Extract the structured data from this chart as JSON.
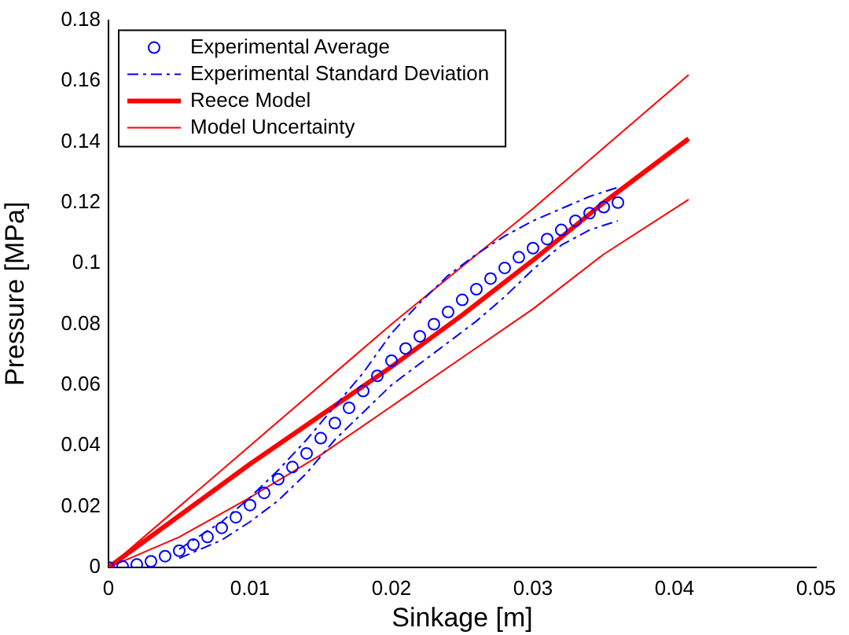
{
  "chart_data": {
    "type": "line",
    "xlabel": "Sinkage [m]",
    "ylabel": "Pressure [MPa]",
    "xlim": [
      0,
      0.05
    ],
    "xticks": [
      0,
      0.01,
      0.02,
      0.03,
      0.04,
      0.05
    ],
    "ylim": [
      0,
      0.18
    ],
    "yticks": [
      0,
      0.02,
      0.04,
      0.06,
      0.08,
      0.1,
      0.12,
      0.14,
      0.16,
      0.18
    ],
    "grid": false,
    "legend": "top left",
    "series": [
      {
        "name": "Experimental Average",
        "type": "scatter",
        "marker": "circle",
        "color": "#0000ff",
        "x": [
          0,
          0.001,
          0.002,
          0.003,
          0.004,
          0.005,
          0.006,
          0.007,
          0.008,
          0.009,
          0.01,
          0.011,
          0.012,
          0.013,
          0.014,
          0.015,
          0.016,
          0.017,
          0.018,
          0.019,
          0.02,
          0.021,
          0.022,
          0.023,
          0.024,
          0.025,
          0.026,
          0.027,
          0.028,
          0.029,
          0.03,
          0.031,
          0.032,
          0.033,
          0.034,
          0.035,
          0.036
        ],
        "values": [
          0,
          0.0003,
          0.001,
          0.002,
          0.0037,
          0.0055,
          0.0075,
          0.01,
          0.013,
          0.0165,
          0.0205,
          0.0245,
          0.029,
          0.033,
          0.0375,
          0.0425,
          0.0475,
          0.0525,
          0.058,
          0.063,
          0.068,
          0.072,
          0.076,
          0.08,
          0.084,
          0.088,
          0.0915,
          0.095,
          0.0985,
          0.102,
          0.105,
          0.108,
          0.111,
          0.114,
          0.1165,
          0.1185,
          0.12
        ]
      },
      {
        "name": "Experimental Standard Deviation",
        "type": "line",
        "line_style": "dashed",
        "color": "#0000ff",
        "x": [
          0.005,
          0.008,
          0.01,
          0.012,
          0.014,
          0.016,
          0.018,
          0.02,
          0.022,
          0.024,
          0.026,
          0.028,
          0.03,
          0.032,
          0.034,
          0.036
        ],
        "values": [
          0.006,
          0.015,
          0.023,
          0.032,
          0.042,
          0.053,
          0.064,
          0.077,
          0.087,
          0.096,
          0.103,
          0.109,
          0.114,
          0.118,
          0.122,
          0.125
        ]
      },
      {
        "type": "line",
        "line_style": "dashed",
        "color": "#0000ff",
        "x": [
          0.005,
          0.008,
          0.01,
          0.012,
          0.014,
          0.016,
          0.018,
          0.02,
          0.022,
          0.024,
          0.026,
          0.028,
          0.03,
          0.032,
          0.034,
          0.036
        ],
        "values": [
          0.003,
          0.009,
          0.015,
          0.022,
          0.031,
          0.042,
          0.051,
          0.06,
          0.067,
          0.074,
          0.081,
          0.089,
          0.098,
          0.106,
          0.111,
          0.114
        ]
      },
      {
        "name": "Reece Model",
        "type": "line",
        "line_style": "solid",
        "color": "#ff0000",
        "x": [
          0,
          0.005,
          0.01,
          0.015,
          0.02,
          0.025,
          0.03,
          0.035,
          0.041
        ],
        "values": [
          0,
          0.017,
          0.034,
          0.05,
          0.066,
          0.083,
          0.101,
          0.12,
          0.141
        ]
      },
      {
        "name": "Model Uncertainty",
        "type": "line",
        "line_style": "solid",
        "color": "#ff0000",
        "x": [
          0,
          0.005,
          0.01,
          0.015,
          0.02,
          0.025,
          0.03,
          0.035,
          0.041
        ],
        "values": [
          0,
          0.02,
          0.04,
          0.06,
          0.08,
          0.099,
          0.118,
          0.138,
          0.162
        ]
      },
      {
        "type": "line",
        "line_style": "solid",
        "color": "#ff0000",
        "x": [
          0,
          0.005,
          0.01,
          0.015,
          0.02,
          0.025,
          0.03,
          0.035,
          0.041
        ],
        "values": [
          0,
          0.01,
          0.023,
          0.037,
          0.053,
          0.069,
          0.085,
          0.103,
          0.121
        ]
      }
    ]
  }
}
